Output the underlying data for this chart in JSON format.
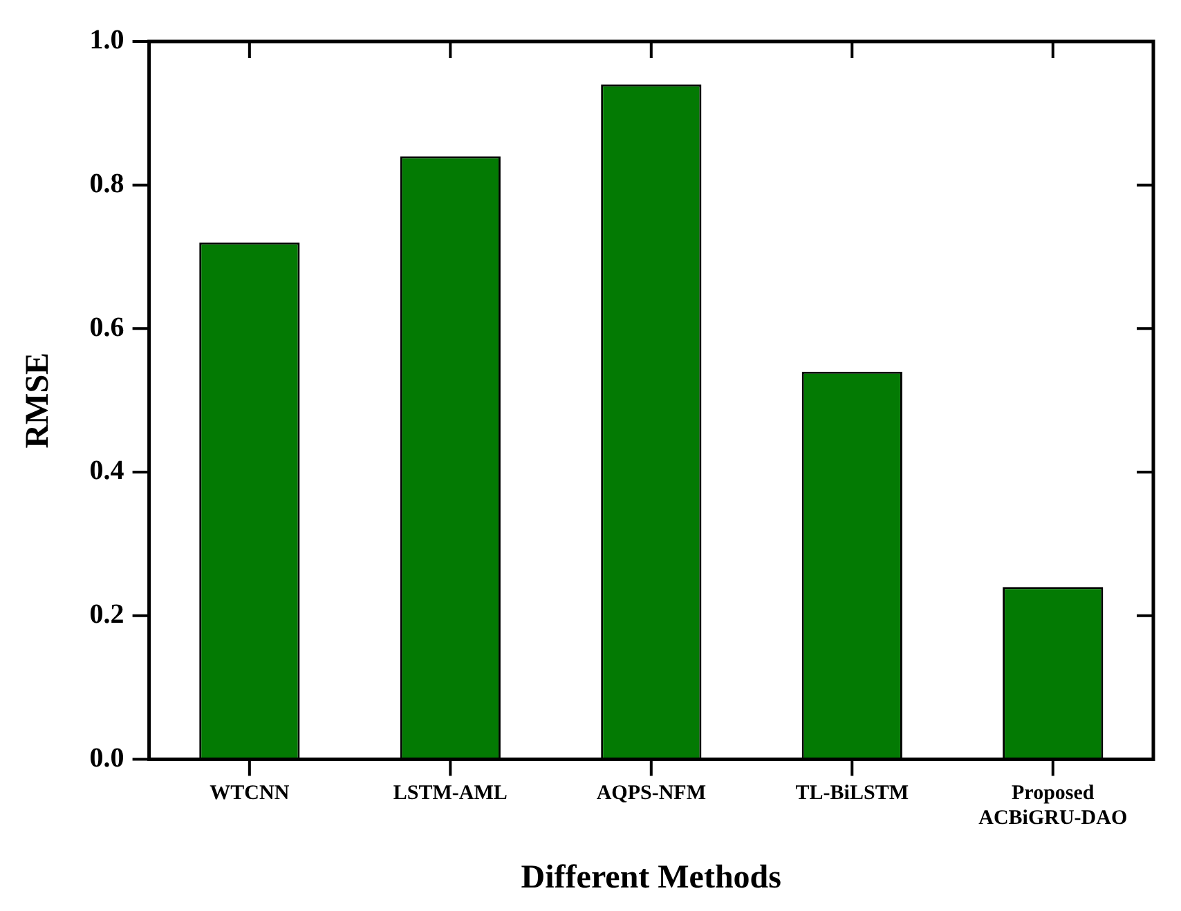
{
  "chart_data": {
    "type": "bar",
    "xlabel": "Different Methods",
    "ylabel": "RMSE",
    "categories": [
      "WTCNN",
      "LSTM-AML",
      "AQPS-NFM",
      "TL-BiLSTM",
      "Proposed\nACBiGRU-DAO"
    ],
    "values": [
      0.72,
      0.84,
      0.94,
      0.54,
      0.24
    ],
    "color": "#037a03",
    "ylim": [
      0,
      1.0
    ],
    "yticks": [
      {
        "value": 0,
        "label": "0.0"
      },
      {
        "value": 0.2,
        "label": "0.2"
      },
      {
        "value": 0.4,
        "label": "0.4"
      },
      {
        "value": 0.6,
        "label": "0.6"
      },
      {
        "value": 0.8,
        "label": "0.8"
      },
      {
        "value": 1.0,
        "label": "1.0"
      }
    ],
    "grid": false,
    "legend": false
  }
}
